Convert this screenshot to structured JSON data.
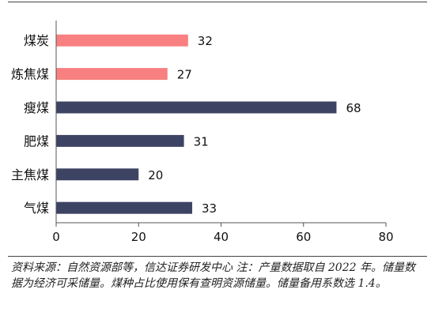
{
  "chart_data": {
    "type": "bar",
    "orientation": "horizontal",
    "categories": [
      "煤炭",
      "炼焦煤",
      "瘦煤",
      "肥煤",
      "主焦煤",
      "气煤"
    ],
    "values": [
      32,
      27,
      68,
      31,
      20,
      33
    ],
    "bar_colors": [
      "#F88080",
      "#F88080",
      "#3D4463",
      "#3D4463",
      "#3D4463",
      "#3D4463"
    ],
    "xlim": [
      0,
      80
    ],
    "xticks": [
      0,
      20,
      40,
      60,
      80
    ],
    "grid": false,
    "data_labels": true
  },
  "footnote": "资料来源：自然资源部等，信达证券研发中心 注：产量数据取自 2022 年。储量数据为经济可采储量。煤种占比使用保有查明资源储量。储量备用系数选 1.4。"
}
